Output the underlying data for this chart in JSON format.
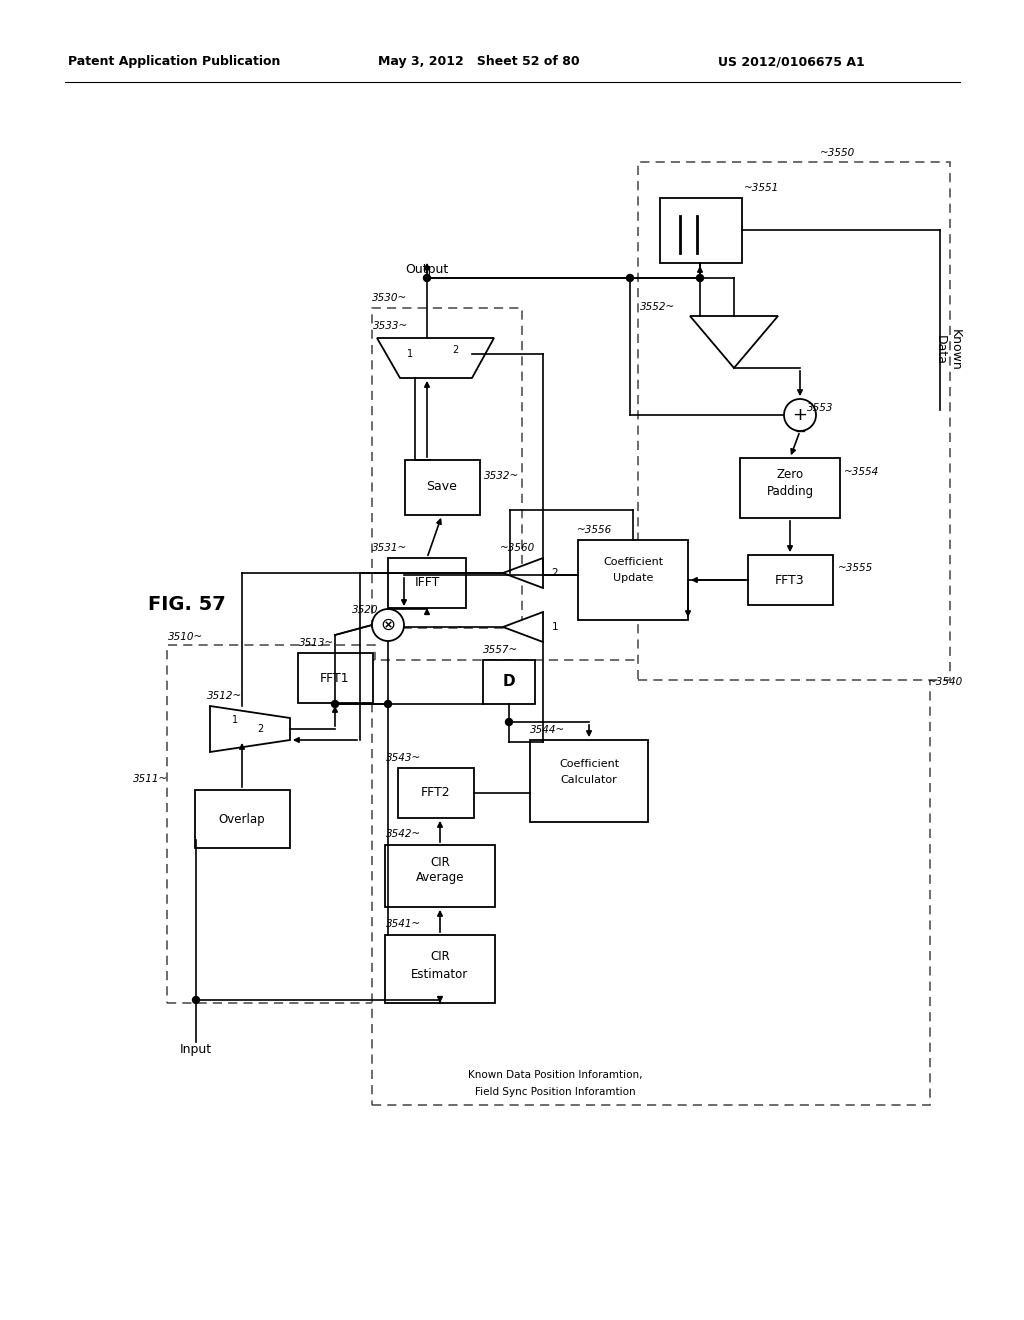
{
  "header_left": "Patent Application Publication",
  "header_center": "May 3, 2012   Sheet 52 of 80",
  "header_right": "US 2012/0106675 A1",
  "fig_label": "FIG. 57"
}
